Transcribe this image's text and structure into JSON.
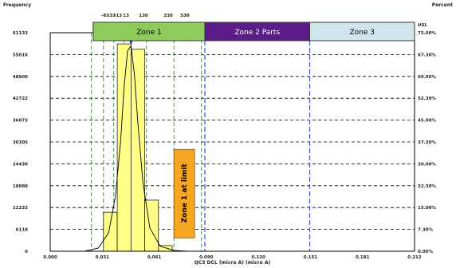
{
  "chart_data": {
    "type": "bar",
    "title": "",
    "ylabel_left": "Frequency",
    "ylabel_right": "Percent",
    "xlabel": "QC3 DCL (micro A) (micro A)",
    "x_ticks": [
      "0.000",
      "0.031",
      "0.061",
      "0.090",
      "0.120",
      "0.151",
      "0.181",
      "0.212"
    ],
    "xlim": [
      0.0,
      0.212
    ],
    "left_ticks": [
      "0",
      "6118",
      "12233",
      "18888",
      "24430",
      "30305",
      "36073",
      "42722",
      "48900",
      "55016",
      "61133"
    ],
    "right_ticks": [
      "0.00%",
      "7.30%",
      "15.00%",
      "22.30%",
      "30.00%",
      "37.30%",
      "45.00%",
      "52.30%",
      "60.00%",
      "67.30%",
      "75.00%"
    ],
    "right_top_label": "USL",
    "top_ticks": [
      "-83",
      "-33",
      "-13",
      "13",
      "130",
      "330",
      "530"
    ],
    "top_tick_x": [
      0.024,
      0.031,
      0.037,
      0.043,
      0.056,
      0.072,
      0.088
    ],
    "bars": [
      {
        "x0": 0.031,
        "x1": 0.039,
        "value": 10900
      },
      {
        "x0": 0.039,
        "x1": 0.047,
        "value": 58000
      },
      {
        "x0": 0.047,
        "x1": 0.055,
        "value": 56500
      },
      {
        "x0": 0.055,
        "x1": 0.063,
        "value": 14300
      },
      {
        "x0": 0.063,
        "x1": 0.071,
        "value": 1600
      }
    ],
    "curve_x": [
      0.02,
      0.028,
      0.034,
      0.038,
      0.041,
      0.043,
      0.045,
      0.047,
      0.049,
      0.051,
      0.054,
      0.058,
      0.064,
      0.072,
      0.08
    ],
    "curve_y": [
      0,
      900,
      5200,
      15500,
      31000,
      46000,
      56000,
      57500,
      49500,
      36000,
      19000,
      6500,
      1400,
      250,
      0
    ],
    "usl_x": 0.151,
    "lsl_x": 0.09,
    "mean_x": 0.047,
    "zones": [
      {
        "name": "Zone 1",
        "x0": 0.025,
        "x1": 0.09,
        "color": "#8dcc5a",
        "text_color": "#000000"
      },
      {
        "name": "Zone 2 Parts",
        "x0": 0.09,
        "x1": 0.151,
        "color": "#5c1a8a",
        "text_color": "#ffffff"
      },
      {
        "name": "Zone 3",
        "x0": 0.151,
        "x1": 0.212,
        "color": "#cfe6ec",
        "text_color": "#000000"
      }
    ],
    "annotation": {
      "text": "Zone 1 at limit",
      "x": 0.078,
      "y": 28500,
      "color": "#f5a623"
    }
  }
}
